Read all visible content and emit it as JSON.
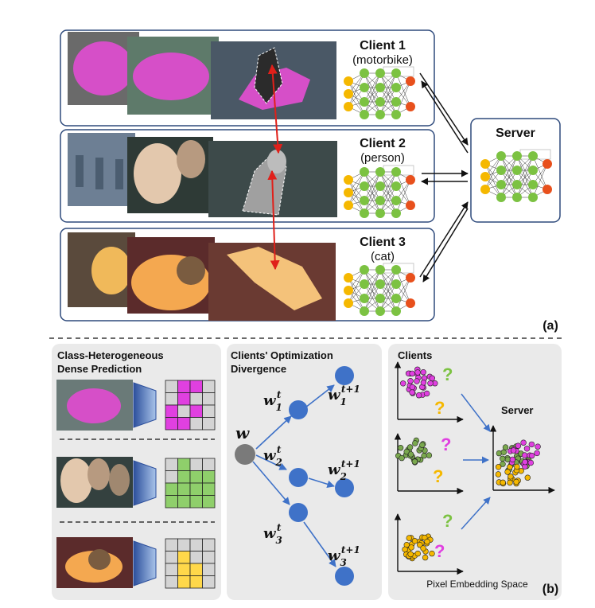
{
  "part_a": {
    "clients": [
      {
        "title": "Client 1",
        "class": "(motorbike)"
      },
      {
        "title": "Client 2",
        "class": "(person)"
      },
      {
        "title": "Client 3",
        "class": "(cat)"
      }
    ],
    "server": "Server",
    "label": "(a)"
  },
  "part_b": {
    "panel1": {
      "title_line1": "Class-Heterogeneous",
      "title_line2": "Dense Prediction"
    },
    "panel2": {
      "title_line1": "Clients' Optimization",
      "title_line2": "Divergence",
      "w": "w",
      "w_sub": "1",
      "w_sup": "t",
      "w2_sub": "2",
      "w3_sub": "3",
      "wn_sup": "t+1"
    },
    "panel3": {
      "clients": "Clients",
      "server": "Server",
      "question": "?",
      "axis_label": "Pixel Embedding Space"
    },
    "label": "(b)"
  },
  "colors": {
    "green_node": "#7cc242",
    "yellow_node": "#f5b800",
    "orange_node": "#e8501c",
    "magenta": "#e040e0",
    "blue_node": "#3f72c8",
    "red_arrow": "#e0201a",
    "panel_bg": "#eaeaea"
  }
}
